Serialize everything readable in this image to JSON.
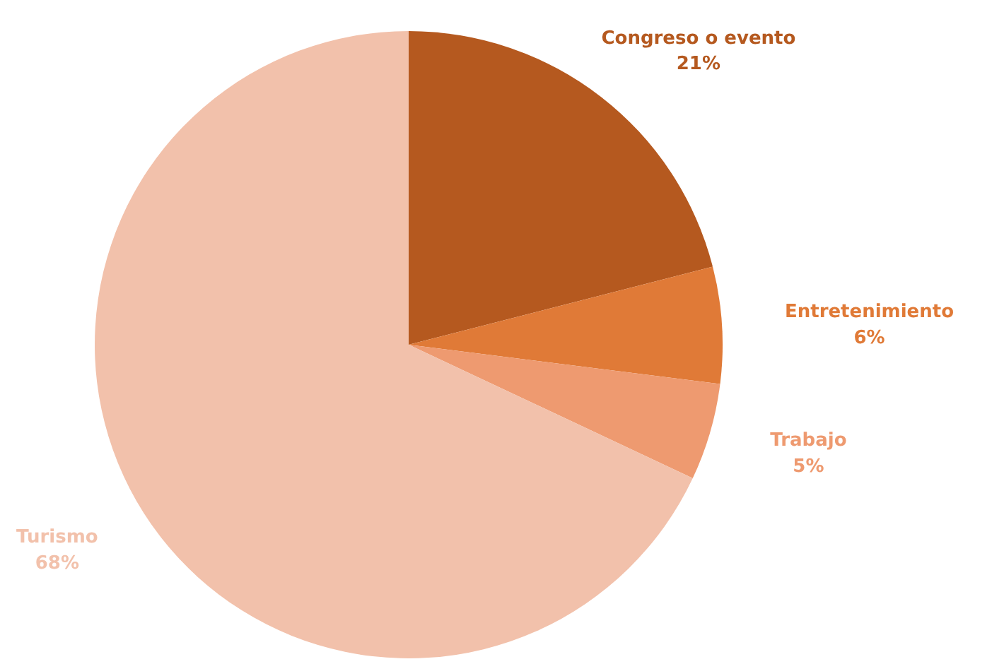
{
  "chart_data": {
    "type": "pie",
    "categories": [
      "Congreso o evento",
      "Entretenimiento",
      "Trabajo",
      "Turismo"
    ],
    "values": [
      21,
      6,
      5,
      68
    ],
    "value_labels": [
      "21%",
      "6%",
      "5%",
      "68%"
    ],
    "colors": [
      "#b5591f",
      "#e07a37",
      "#ee9a70",
      "#f2c1ab"
    ]
  }
}
